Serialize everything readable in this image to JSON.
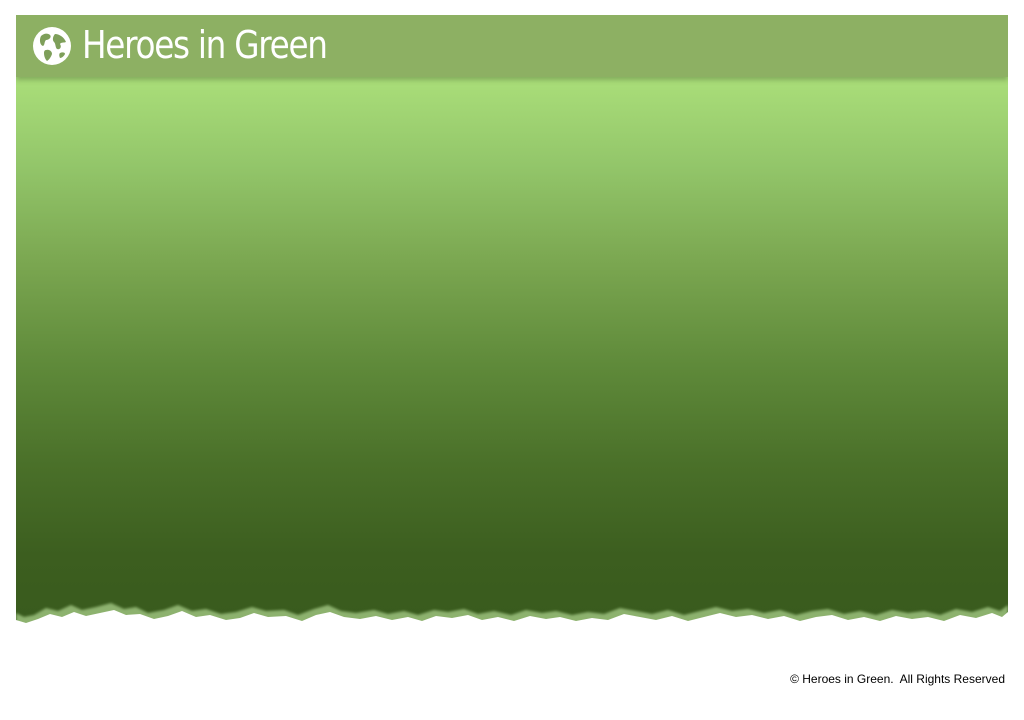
{
  "header": {
    "title": "Heroes in Green",
    "logo_icon": "globe-icon"
  },
  "footer": {
    "copyright": "© Heroes in Green.  All Rights Reserved"
  },
  "colors": {
    "header_bar": "#8db063",
    "gradient_top": "#b6ec82",
    "gradient_bottom": "#385a1d",
    "title_text": "#ffffff"
  }
}
